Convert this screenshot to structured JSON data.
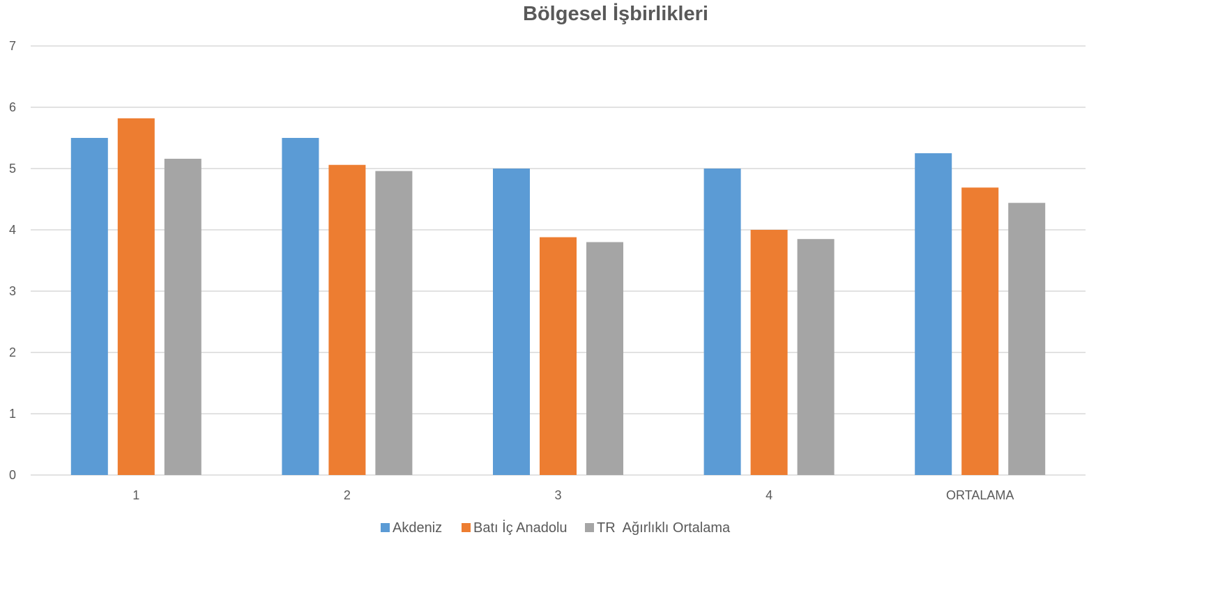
{
  "chart_data": {
    "type": "bar",
    "title": "Bölgesel İşbirlikleri",
    "xlabel": "",
    "ylabel": "",
    "categories": [
      "1",
      "2",
      "3",
      "4",
      "ORTALAMA"
    ],
    "series": [
      {
        "name": "Akdeniz",
        "color": "#5B9BD5",
        "values": [
          5.5,
          5.5,
          5.0,
          5.0,
          5.25
        ]
      },
      {
        "name": "Batı İç Anadolu",
        "color": "#ED7D31",
        "values": [
          5.82,
          5.06,
          3.88,
          4.0,
          4.69
        ]
      },
      {
        "name": "TR  Ağırlıklı Ortalama",
        "color": "#A5A5A5",
        "values": [
          5.16,
          4.96,
          3.8,
          3.85,
          4.44
        ]
      }
    ],
    "ylim": [
      0,
      7
    ],
    "yticks": [
      0,
      1,
      2,
      3,
      4,
      5,
      6,
      7
    ],
    "grid": true,
    "legend_position": "bottom"
  }
}
